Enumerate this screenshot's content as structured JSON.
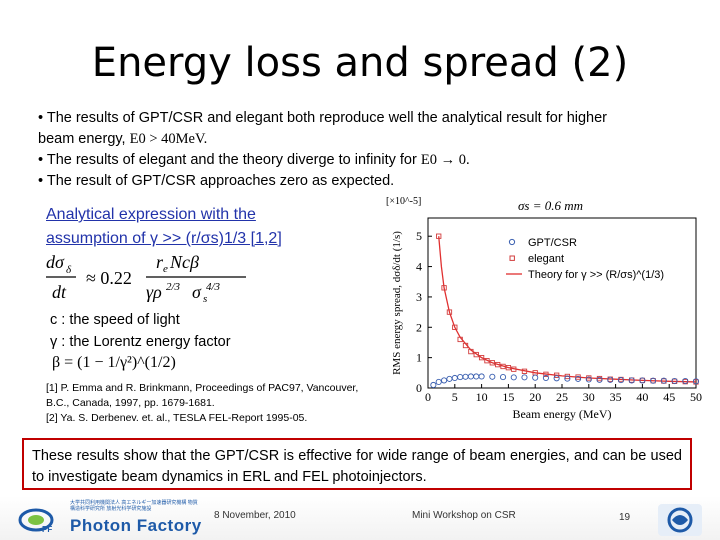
{
  "slide": {
    "title": "Energy loss and spread (2)",
    "bullets": [
      "• The results of GPT/CSR and elegant both reproduce well the analytical result for higher",
      "beam energy, ",
      "• The results of elegant and the theory diverge to infinity for ",
      "• The result of GPT/CSR approaches zero as expected."
    ],
    "bullet_math": {
      "e0_gt": "E0 > 40MeV.",
      "e0_arrow": "E0 → 0."
    },
    "analytic_heading": [
      "Analytical expression with the",
      "assumption of γ >> (r/σs)1/3 [1,2]"
    ],
    "formula_text": "dσδ/dt ≈ 0.22 · r_e N c β / (γ ρ^(2/3) σs^(4/3))",
    "symbols": [
      "c : the speed of light",
      "γ : the Lorentz energy factor"
    ],
    "beta_formula": "β = (1 − 1/γ²)^(1/2)",
    "references": [
      "[1] P. Emma and R. Brinkmann, Proceedings of PAC97, Vancouver,",
      "B.C., Canada, 1997, pp. 1679-1681.",
      "[2] Ya. S. Derbenev. et. al., TESLA FEL-Report 1995-05."
    ],
    "conclusion": "These results show that the GPT/CSR is effective for wide range of beam energies, and can be used to investigate beam dynamics in ERL and FEL photoinjectors."
  },
  "footer": {
    "org": "Photon Factory",
    "org_jp": "大学共同利用機関法人 高エネルギー加速器研究機構 物質構造科学研究所 放射光科学研究施設",
    "date": "8 November, 2010",
    "event": "Mini Workshop on CSR",
    "page": "19"
  },
  "colors": {
    "pink": "#c8189c",
    "link_blue": "#2233aa",
    "box_red": "#c00000",
    "gpt_marker": "#3a5fb0",
    "elegant_marker": "#d23c3c",
    "theory_line": "#e03030"
  },
  "chart_data": {
    "type": "scatter",
    "annotation": "σs = 0.6 mm",
    "scale_label": "[×10^-5]",
    "xlabel": "Beam energy (MeV)",
    "ylabel": "RMS energy spread, dσδ/dt (1/s)",
    "xlim": [
      0,
      50
    ],
    "ylim": [
      0,
      5.6
    ],
    "xticks": [
      0,
      5,
      10,
      15,
      20,
      25,
      30,
      35,
      40,
      45,
      50
    ],
    "yticks": [
      0,
      1,
      2,
      3,
      4,
      5
    ],
    "series": [
      {
        "name": "GPT/CSR",
        "marker": "circle",
        "x": [
          1,
          2,
          3,
          4,
          5,
          6,
          7,
          8,
          9,
          10,
          12,
          14,
          16,
          18,
          20,
          22,
          24,
          26,
          28,
          30,
          32,
          34,
          36,
          38,
          40,
          42,
          44,
          46,
          48,
          50
        ],
        "y": [
          0.1,
          0.2,
          0.25,
          0.3,
          0.33,
          0.36,
          0.37,
          0.38,
          0.38,
          0.38,
          0.37,
          0.36,
          0.35,
          0.35,
          0.34,
          0.33,
          0.32,
          0.31,
          0.3,
          0.28,
          0.27,
          0.27,
          0.26,
          0.25,
          0.25,
          0.24,
          0.24,
          0.23,
          0.23,
          0.22
        ]
      },
      {
        "name": "elegant",
        "marker": "square",
        "x": [
          2,
          3,
          4,
          5,
          6,
          7,
          8,
          9,
          10,
          11,
          12,
          13,
          14,
          15,
          16,
          18,
          20,
          22,
          24,
          26,
          28,
          30,
          32,
          34,
          36,
          38,
          40,
          42,
          44,
          46,
          48,
          50
        ],
        "y": [
          5.0,
          3.3,
          2.5,
          2.0,
          1.6,
          1.4,
          1.2,
          1.1,
          1.0,
          0.9,
          0.83,
          0.77,
          0.71,
          0.67,
          0.62,
          0.55,
          0.5,
          0.45,
          0.42,
          0.38,
          0.36,
          0.33,
          0.31,
          0.29,
          0.28,
          0.26,
          0.25,
          0.24,
          0.23,
          0.22,
          0.21,
          0.2
        ]
      },
      {
        "name": "Theory for γ >> (R/σs)^(1/3)",
        "marker": "line",
        "x": [
          2,
          2.5,
          3,
          4,
          5,
          6,
          8,
          10,
          12,
          15,
          20,
          25,
          30,
          35,
          40,
          45,
          50
        ],
        "y": [
          5.0,
          4.0,
          3.3,
          2.5,
          2.0,
          1.67,
          1.25,
          1.0,
          0.83,
          0.67,
          0.5,
          0.4,
          0.33,
          0.29,
          0.25,
          0.22,
          0.2
        ]
      }
    ]
  }
}
